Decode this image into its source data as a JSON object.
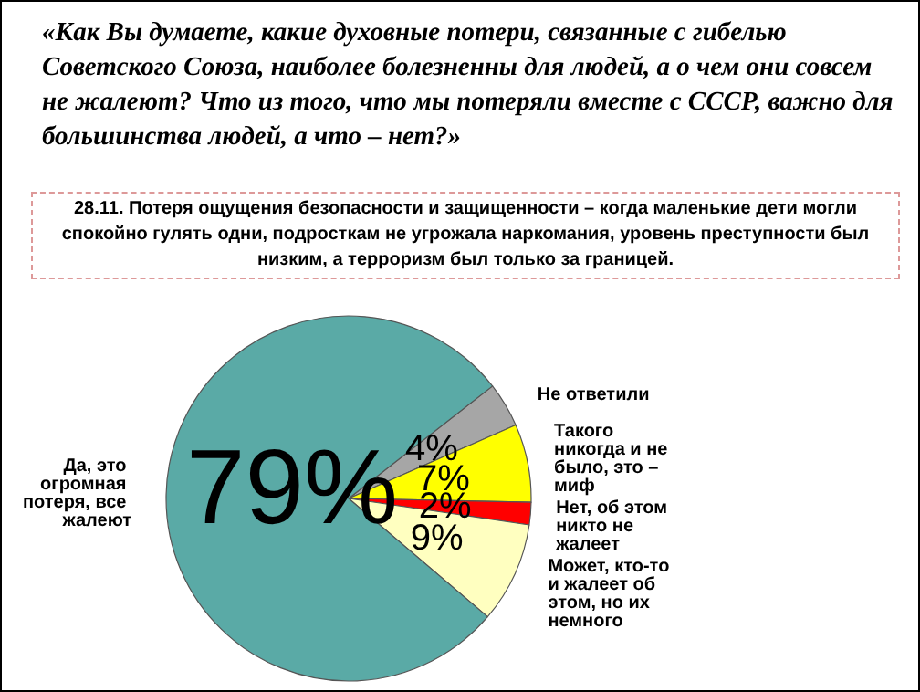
{
  "chart_data": {
    "type": "pie",
    "title": "«Как Вы думаете, какие духовные потери, связанные с гибелью Советского Союза, наиболее болезненны для людей, а о чем они совсем не жалеют? Что из того, что мы потеряли вместе с СССР, важно для большинства людей, а что – нет?»",
    "subtitle": "28.11. Потеря ощущения безопасности и защищенности – когда маленькие дети могли спокойно гулять одни, подросткам не угрожала наркомания, уровень преступности был низким, а терроризм был только за границей.",
    "categories": [
      "Не ответили",
      "Такого никогда и не было, это – миф",
      "Нет, об этом никто не жалеет",
      "Может, кто-то и жалеет об этом, но их немного",
      "Да, это огромная потеря, все жалеют"
    ],
    "values": [
      4,
      7,
      2,
      9,
      79
    ],
    "colors": [
      "#a6a6a6",
      "#ffff00",
      "#ff0000",
      "#ffffc0",
      "#5aaaa6"
    ],
    "value_labels": [
      "4%",
      "7%",
      "2%",
      "9%",
      "79%"
    ]
  }
}
